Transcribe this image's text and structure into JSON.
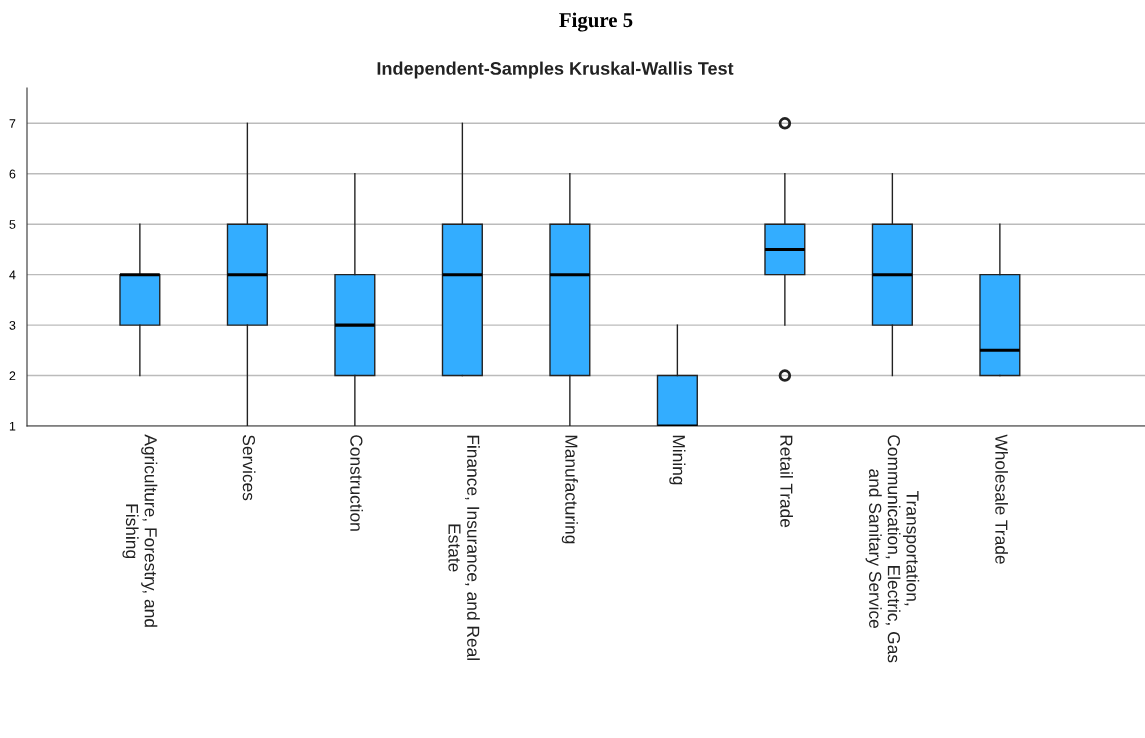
{
  "chart_data": {
    "type": "box",
    "title": "Figure 5",
    "subtitle": "Independent-Samples Kruskal-Wallis Test",
    "categories": [
      "Agriculture, Forestry, and\nFishing",
      "Services",
      "Construction",
      "Finance, Insurance, and Real\nEstate",
      "Manufacturing",
      "Mining",
      "Retail Trade",
      "Transportation,\nCommunication, Electric, Gas\nand Sanitary Service",
      "Wholesale Trade"
    ],
    "color": "#33adff",
    "boxes": [
      {
        "low": 2,
        "q1": 3,
        "median": 4,
        "q3": 4,
        "high": 5
      },
      {
        "low": 1,
        "q1": 3,
        "median": 4,
        "q3": 5,
        "high": 7
      },
      {
        "low": 1,
        "q1": 2,
        "median": 3,
        "q3": 4,
        "high": 6
      },
      {
        "low": 2,
        "q1": 2,
        "median": 4,
        "q3": 5,
        "high": 7
      },
      {
        "low": 1,
        "q1": 2,
        "median": 4,
        "q3": 5,
        "high": 6
      },
      {
        "low": 1,
        "q1": 1,
        "median": 1,
        "q3": 2,
        "high": 3
      },
      {
        "low": 3,
        "q1": 4,
        "median": 4.5,
        "q3": 5,
        "high": 6,
        "outliers": [
          2,
          7
        ]
      },
      {
        "low": 2,
        "q1": 3,
        "median": 4,
        "q3": 5,
        "high": 6
      },
      {
        "low": 2,
        "q1": 2,
        "median": 2.5,
        "q3": 4,
        "high": 5
      }
    ],
    "ylim": [
      1,
      7.7
    ],
    "yticks": [
      1,
      2,
      3,
      4,
      5,
      6,
      7
    ],
    "grid": "y"
  }
}
